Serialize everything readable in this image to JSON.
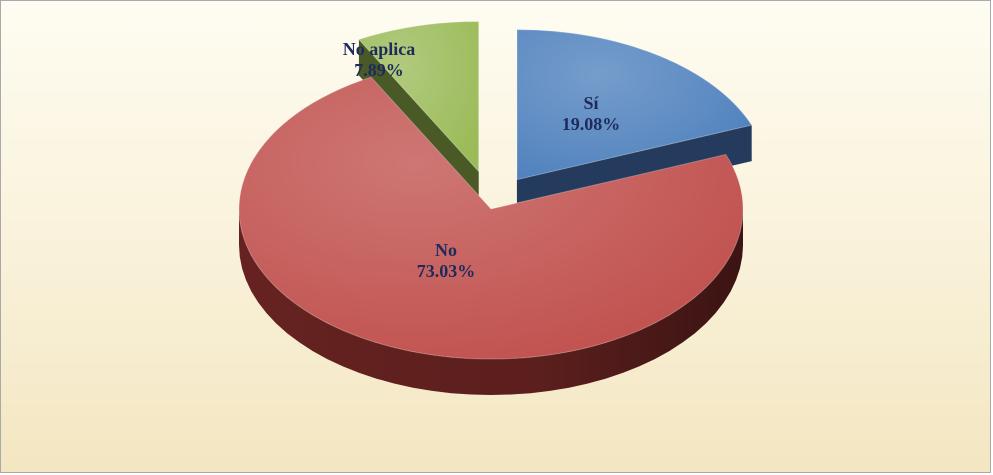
{
  "chart_data": {
    "type": "pie",
    "title": "",
    "style": "3d-exploded",
    "slices": [
      {
        "name": "Sí",
        "value": 19.08,
        "percent_label": "19.08%",
        "color": "#4f81bd",
        "side_color": "#243b5e"
      },
      {
        "name": "No",
        "value": 73.03,
        "percent_label": "73.03%",
        "color": "#c0504d",
        "side_color": "#6b2422"
      },
      {
        "name": "No aplica",
        "value": 7.89,
        "percent_label": "7.89%",
        "color": "#9bbb59",
        "side_color": "#4a5a26"
      }
    ],
    "legend": "none",
    "background_color": "#f9f1d9"
  }
}
